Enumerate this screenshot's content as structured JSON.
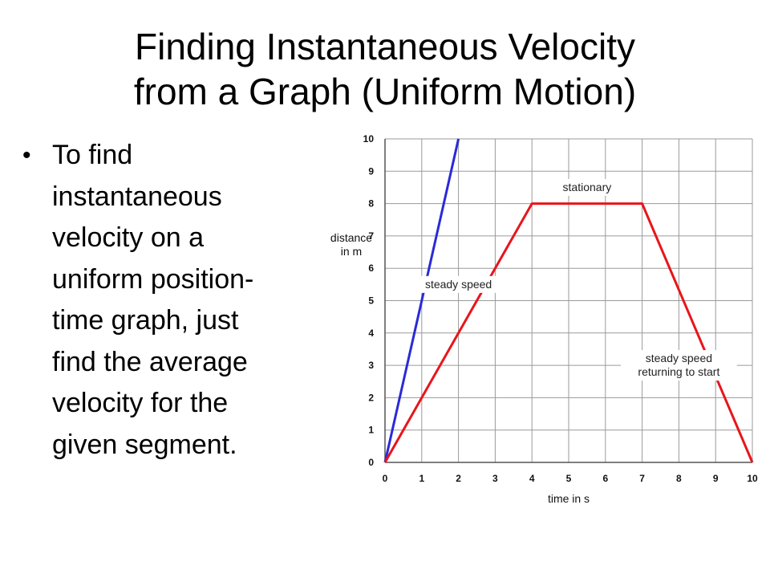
{
  "slide": {
    "title_lines": [
      "Finding Instantaneous Velocity",
      "from a Graph (Uniform Motion)"
    ],
    "bullet_lines": [
      "To find",
      "instantaneous",
      "velocity on a",
      "uniform position-",
      "time graph, just",
      "find the average",
      "velocity for the",
      "given segment."
    ]
  },
  "chart_data": {
    "type": "line",
    "title": "",
    "xlabel": "time in s",
    "ylabel_lines": [
      "distance",
      "in m"
    ],
    "xlim": [
      0,
      10
    ],
    "ylim": [
      0,
      10
    ],
    "xticks": [
      "0",
      "1",
      "2",
      "3",
      "4",
      "5",
      "6",
      "7",
      "8",
      "9",
      "10"
    ],
    "yticks": [
      "0",
      "1",
      "2",
      "3",
      "4",
      "5",
      "6",
      "7",
      "8",
      "9",
      "10"
    ],
    "grid": true,
    "series": [
      {
        "color": "#2a2ad8",
        "x": [
          0,
          2
        ],
        "y": [
          0,
          10
        ]
      },
      {
        "color": "#e8151b",
        "x": [
          0,
          4,
          7,
          10
        ],
        "y": [
          0,
          8,
          8,
          0
        ]
      }
    ],
    "annotations": [
      {
        "lines": [
          "stationary"
        ],
        "x": 5.5,
        "y": 8.5
      },
      {
        "lines": [
          "steady speed"
        ],
        "x": 2.0,
        "y": 5.5
      },
      {
        "lines": [
          "steady speed",
          "returning to start"
        ],
        "x": 8.0,
        "y": 3.0
      }
    ]
  }
}
